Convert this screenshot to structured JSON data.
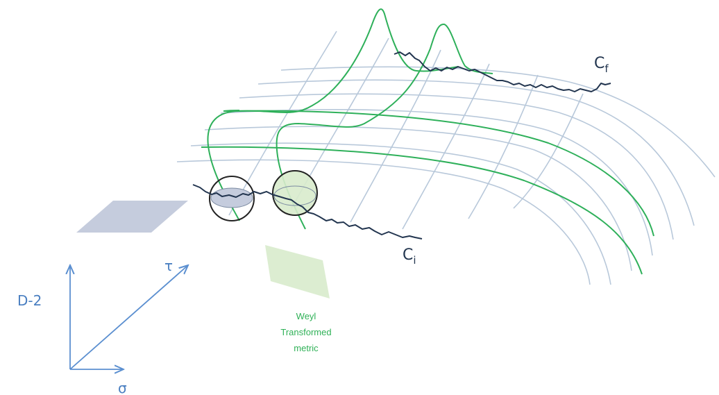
{
  "axes": {
    "vertical_label": "D-2",
    "diagonal_label": "τ",
    "horizontal_label": "σ"
  },
  "curves": {
    "initial": {
      "base": "C",
      "sub": "i"
    },
    "final": {
      "base": "C",
      "sub": "f"
    }
  },
  "annotation": {
    "line1": "Weyl",
    "line2": "Transformed",
    "line3": "metric"
  },
  "colors": {
    "surface_grid": "#b8c8da",
    "highlight": "#2eb05a",
    "curve": "#22354f",
    "axes": "#5b8fd0",
    "grey_plane": "#c5ccdd",
    "green_plane": "#d8ebcc"
  }
}
